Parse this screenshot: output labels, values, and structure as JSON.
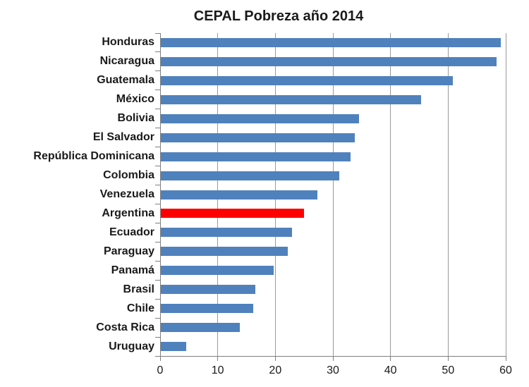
{
  "chart_data": {
    "type": "bar",
    "orientation": "horizontal",
    "title": "CEPAL Pobreza año 2014",
    "categories": [
      "Honduras",
      "Nicaragua",
      "Guatemala",
      "México",
      "Bolivia",
      "El Salvador",
      "República Dominicana",
      "Colombia",
      "Venezuela",
      "Argentina",
      "Ecuador",
      "Paraguay",
      "Panamá",
      "Brasil",
      "Chile",
      "Costa Rica",
      "Uruguay"
    ],
    "values": [
      59.0,
      58.3,
      50.7,
      45.2,
      34.4,
      33.7,
      32.9,
      31.0,
      27.2,
      24.8,
      22.8,
      22.1,
      19.6,
      16.4,
      16.0,
      13.7,
      4.4
    ],
    "highlight_category": "Argentina",
    "colors": {
      "bar": "#4F81BD",
      "highlight_bar": "#FF0000",
      "gridline": "#9A9A9A",
      "axis": "#7F7F7F",
      "text": "#1A1A1A"
    },
    "xlabel": "",
    "ylabel": "",
    "xlim": [
      0,
      60
    ],
    "xticks": [
      0,
      10,
      20,
      30,
      40,
      50,
      60
    ],
    "grid": true,
    "legend": "none"
  }
}
